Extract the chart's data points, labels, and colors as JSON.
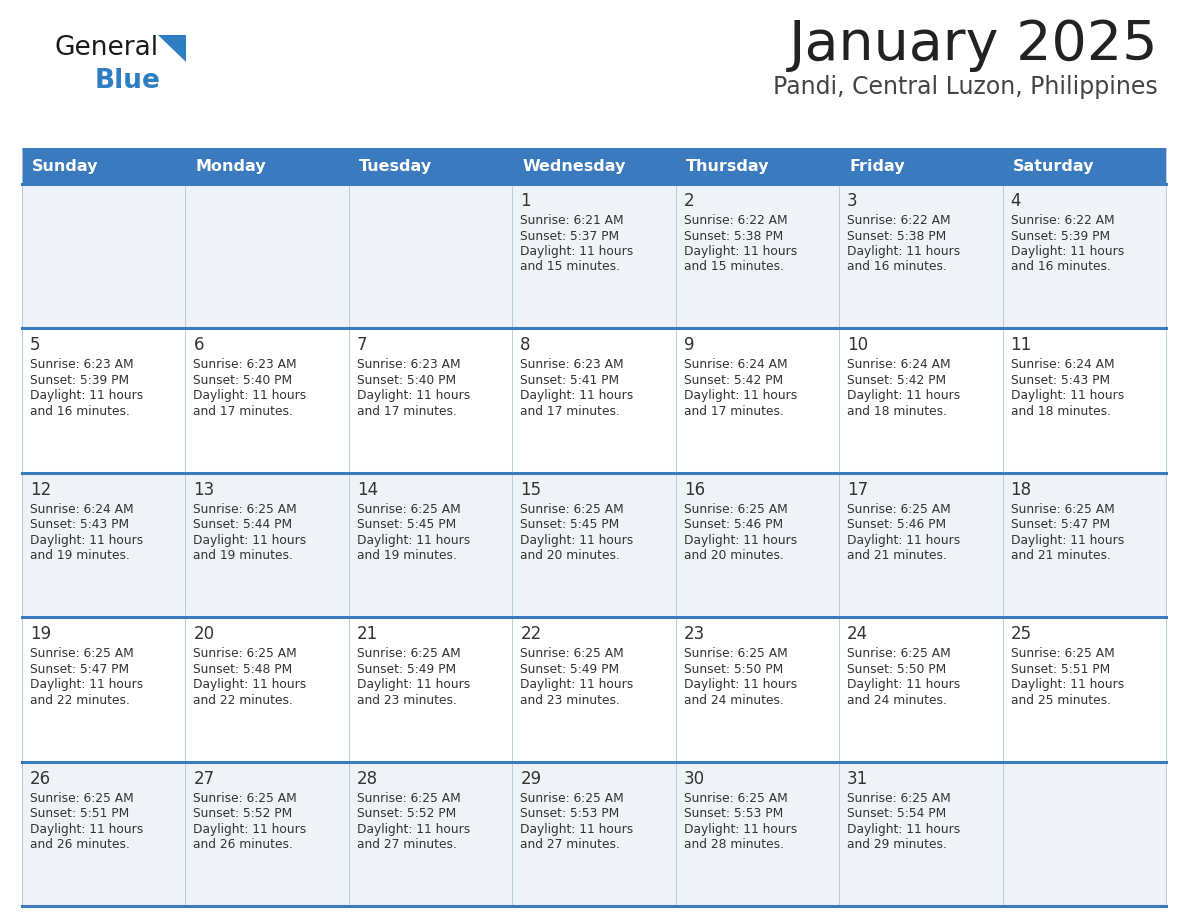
{
  "title": "January 2025",
  "subtitle": "Pandi, Central Luzon, Philippines",
  "header_bg_color": "#3a7abf",
  "header_text_color": "#ffffff",
  "day_names": [
    "Sunday",
    "Monday",
    "Tuesday",
    "Wednesday",
    "Thursday",
    "Friday",
    "Saturday"
  ],
  "row_bg_even": "#eff3f8",
  "row_bg_odd": "#ffffff",
  "border_color": "#3a7abf",
  "thin_border_color": "#b0c4d8",
  "title_color": "#222222",
  "subtitle_color": "#444444",
  "day_num_color": "#333333",
  "cell_text_color": "#333333",
  "logo_general_color": "#1a1a1a",
  "logo_blue_color": "#2e7ec3",
  "calendar": [
    [
      null,
      null,
      null,
      {
        "day": 1,
        "sunrise": "6:21 AM",
        "sunset": "5:37 PM",
        "daylight": "11 hours and 15 minutes."
      },
      {
        "day": 2,
        "sunrise": "6:22 AM",
        "sunset": "5:38 PM",
        "daylight": "11 hours and 15 minutes."
      },
      {
        "day": 3,
        "sunrise": "6:22 AM",
        "sunset": "5:38 PM",
        "daylight": "11 hours and 16 minutes."
      },
      {
        "day": 4,
        "sunrise": "6:22 AM",
        "sunset": "5:39 PM",
        "daylight": "11 hours and 16 minutes."
      }
    ],
    [
      {
        "day": 5,
        "sunrise": "6:23 AM",
        "sunset": "5:39 PM",
        "daylight": "11 hours and 16 minutes."
      },
      {
        "day": 6,
        "sunrise": "6:23 AM",
        "sunset": "5:40 PM",
        "daylight": "11 hours and 17 minutes."
      },
      {
        "day": 7,
        "sunrise": "6:23 AM",
        "sunset": "5:40 PM",
        "daylight": "11 hours and 17 minutes."
      },
      {
        "day": 8,
        "sunrise": "6:23 AM",
        "sunset": "5:41 PM",
        "daylight": "11 hours and 17 minutes."
      },
      {
        "day": 9,
        "sunrise": "6:24 AM",
        "sunset": "5:42 PM",
        "daylight": "11 hours and 17 minutes."
      },
      {
        "day": 10,
        "sunrise": "6:24 AM",
        "sunset": "5:42 PM",
        "daylight": "11 hours and 18 minutes."
      },
      {
        "day": 11,
        "sunrise": "6:24 AM",
        "sunset": "5:43 PM",
        "daylight": "11 hours and 18 minutes."
      }
    ],
    [
      {
        "day": 12,
        "sunrise": "6:24 AM",
        "sunset": "5:43 PM",
        "daylight": "11 hours and 19 minutes."
      },
      {
        "day": 13,
        "sunrise": "6:25 AM",
        "sunset": "5:44 PM",
        "daylight": "11 hours and 19 minutes."
      },
      {
        "day": 14,
        "sunrise": "6:25 AM",
        "sunset": "5:45 PM",
        "daylight": "11 hours and 19 minutes."
      },
      {
        "day": 15,
        "sunrise": "6:25 AM",
        "sunset": "5:45 PM",
        "daylight": "11 hours and 20 minutes."
      },
      {
        "day": 16,
        "sunrise": "6:25 AM",
        "sunset": "5:46 PM",
        "daylight": "11 hours and 20 minutes."
      },
      {
        "day": 17,
        "sunrise": "6:25 AM",
        "sunset": "5:46 PM",
        "daylight": "11 hours and 21 minutes."
      },
      {
        "day": 18,
        "sunrise": "6:25 AM",
        "sunset": "5:47 PM",
        "daylight": "11 hours and 21 minutes."
      }
    ],
    [
      {
        "day": 19,
        "sunrise": "6:25 AM",
        "sunset": "5:47 PM",
        "daylight": "11 hours and 22 minutes."
      },
      {
        "day": 20,
        "sunrise": "6:25 AM",
        "sunset": "5:48 PM",
        "daylight": "11 hours and 22 minutes."
      },
      {
        "day": 21,
        "sunrise": "6:25 AM",
        "sunset": "5:49 PM",
        "daylight": "11 hours and 23 minutes."
      },
      {
        "day": 22,
        "sunrise": "6:25 AM",
        "sunset": "5:49 PM",
        "daylight": "11 hours and 23 minutes."
      },
      {
        "day": 23,
        "sunrise": "6:25 AM",
        "sunset": "5:50 PM",
        "daylight": "11 hours and 24 minutes."
      },
      {
        "day": 24,
        "sunrise": "6:25 AM",
        "sunset": "5:50 PM",
        "daylight": "11 hours and 24 minutes."
      },
      {
        "day": 25,
        "sunrise": "6:25 AM",
        "sunset": "5:51 PM",
        "daylight": "11 hours and 25 minutes."
      }
    ],
    [
      {
        "day": 26,
        "sunrise": "6:25 AM",
        "sunset": "5:51 PM",
        "daylight": "11 hours and 26 minutes."
      },
      {
        "day": 27,
        "sunrise": "6:25 AM",
        "sunset": "5:52 PM",
        "daylight": "11 hours and 26 minutes."
      },
      {
        "day": 28,
        "sunrise": "6:25 AM",
        "sunset": "5:52 PM",
        "daylight": "11 hours and 27 minutes."
      },
      {
        "day": 29,
        "sunrise": "6:25 AM",
        "sunset": "5:53 PM",
        "daylight": "11 hours and 27 minutes."
      },
      {
        "day": 30,
        "sunrise": "6:25 AM",
        "sunset": "5:53 PM",
        "daylight": "11 hours and 28 minutes."
      },
      {
        "day": 31,
        "sunrise": "6:25 AM",
        "sunset": "5:54 PM",
        "daylight": "11 hours and 29 minutes."
      },
      null
    ]
  ]
}
